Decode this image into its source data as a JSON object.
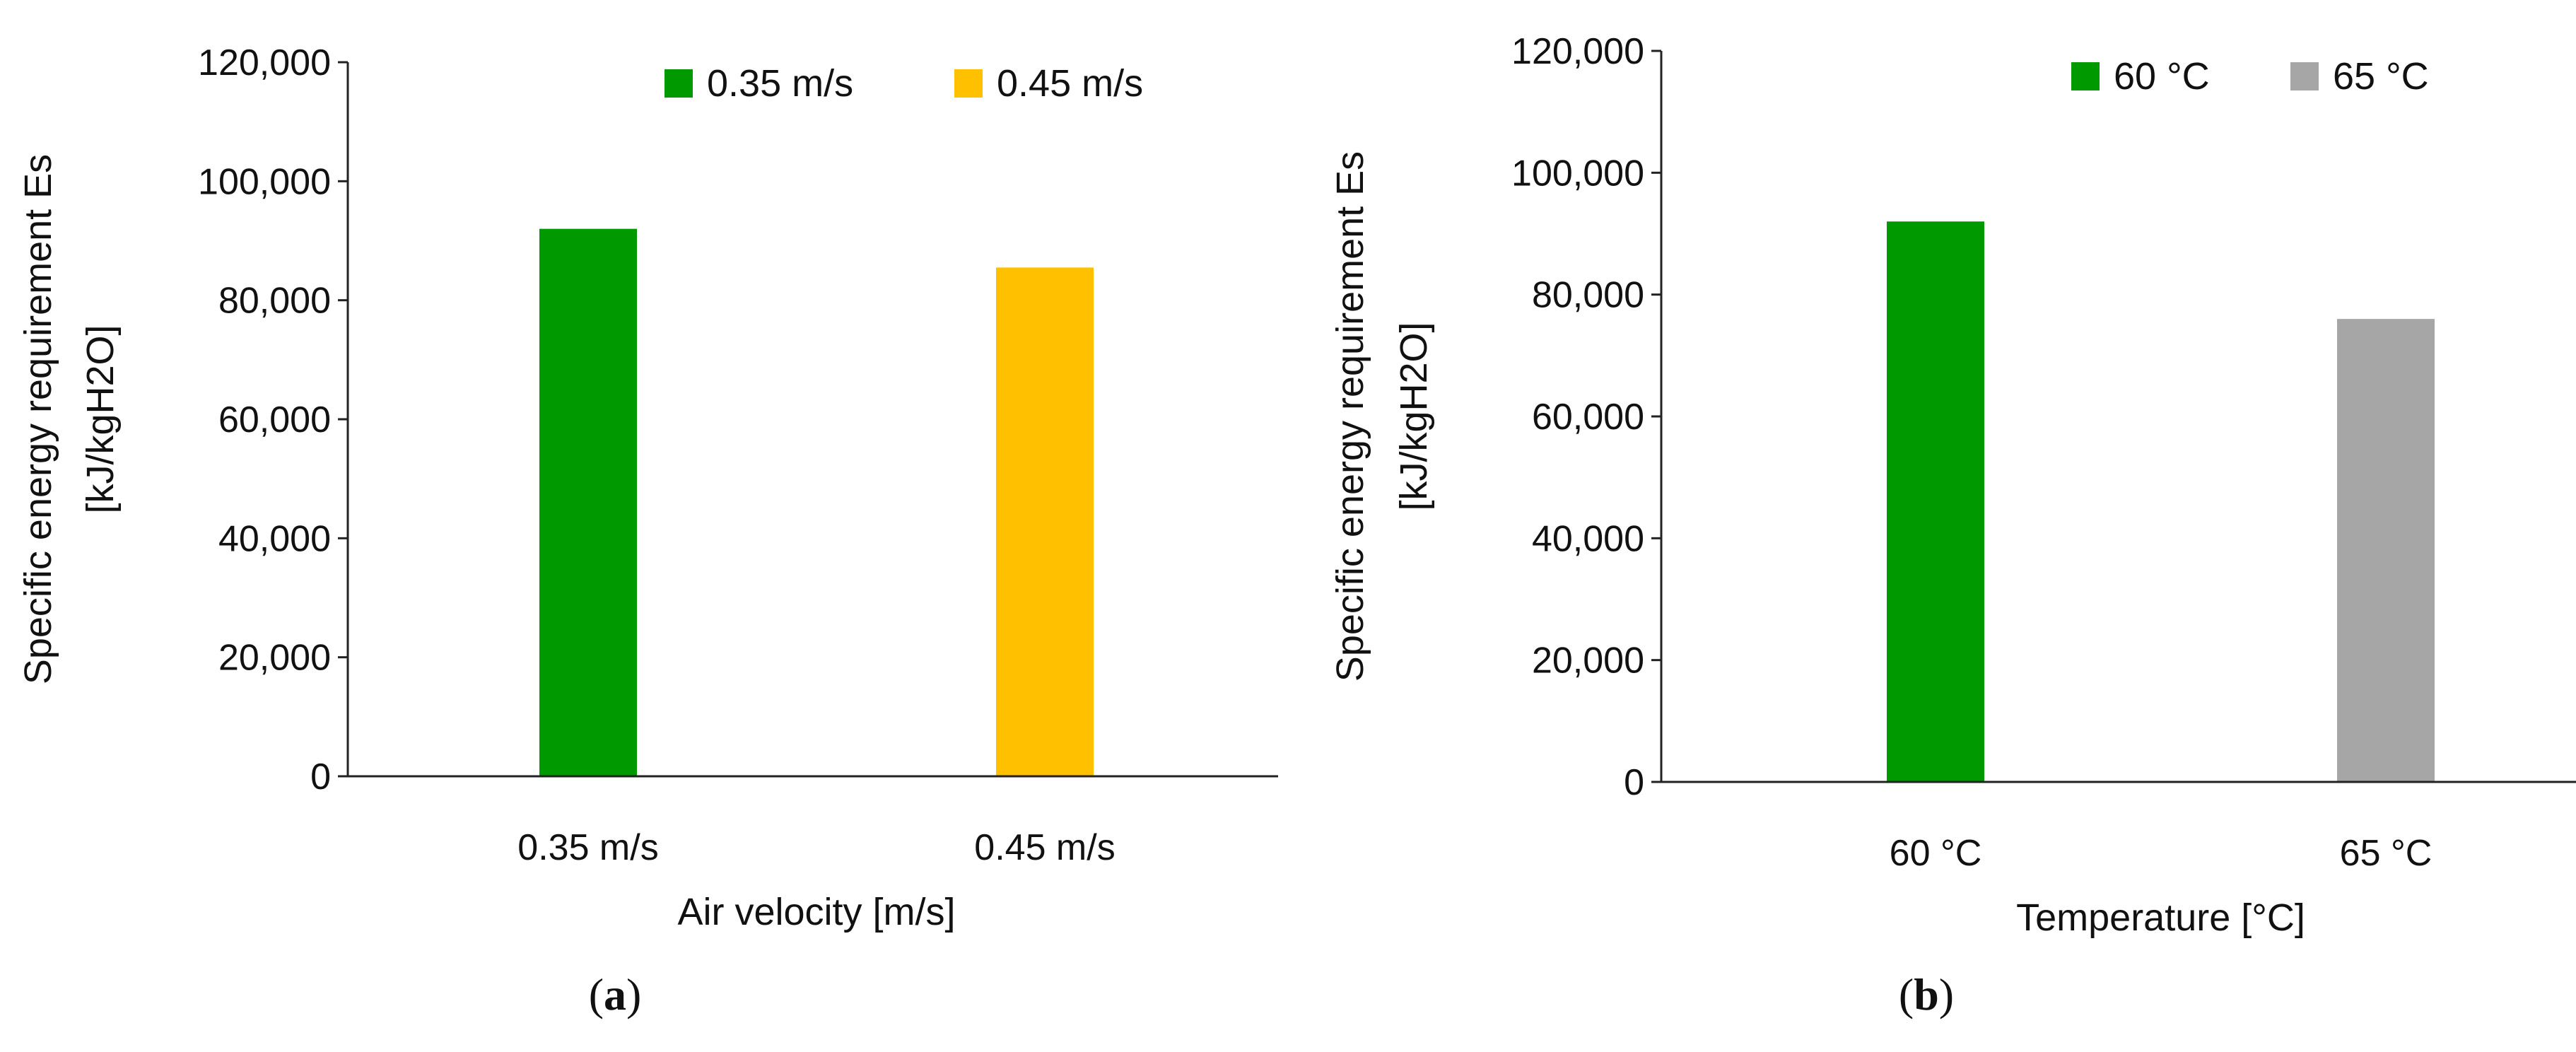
{
  "chart_data": [
    {
      "type": "bar",
      "panel_label": {
        "open": "(",
        "letter": "a",
        "close": ")"
      },
      "categories": [
        "0.35 m/s",
        "0.45 m/s"
      ],
      "series": [
        {
          "name": "0.35 m/s",
          "color": "#009900",
          "values": [
            92000,
            null
          ]
        },
        {
          "name": "0.45 m/s",
          "color": "#ffc000",
          "values": [
            null,
            85500
          ]
        }
      ],
      "xlabel": "Air velocity [m/s]",
      "ylabel_lines": [
        "Specific energy requirement Es",
        "[kJ/kgH2O]"
      ],
      "ylim": [
        0,
        120000
      ],
      "yticks": [
        "0",
        "20,000",
        "40,000",
        "60,000",
        "80,000",
        "100,000",
        "120,000"
      ],
      "grid": false,
      "legend_position": "top"
    },
    {
      "type": "bar",
      "panel_label": {
        "open": "(",
        "letter": "b",
        "close": ")"
      },
      "categories": [
        "60 °C",
        "65 °C"
      ],
      "series": [
        {
          "name": "60 °C",
          "color": "#009900",
          "values": [
            92000,
            null
          ]
        },
        {
          "name": "65 °C",
          "color": "#a6a6a6",
          "values": [
            null,
            76000
          ]
        }
      ],
      "xlabel": "Temperature [°C]",
      "ylabel_lines": [
        "Specific energy requirement Es",
        "[kJ/kgH2O]"
      ],
      "ylim": [
        0,
        120000
      ],
      "yticks": [
        "0",
        "20,000",
        "40,000",
        "60,000",
        "80,000",
        "100,000",
        "120,000"
      ],
      "grid": false,
      "legend_position": "top"
    }
  ]
}
